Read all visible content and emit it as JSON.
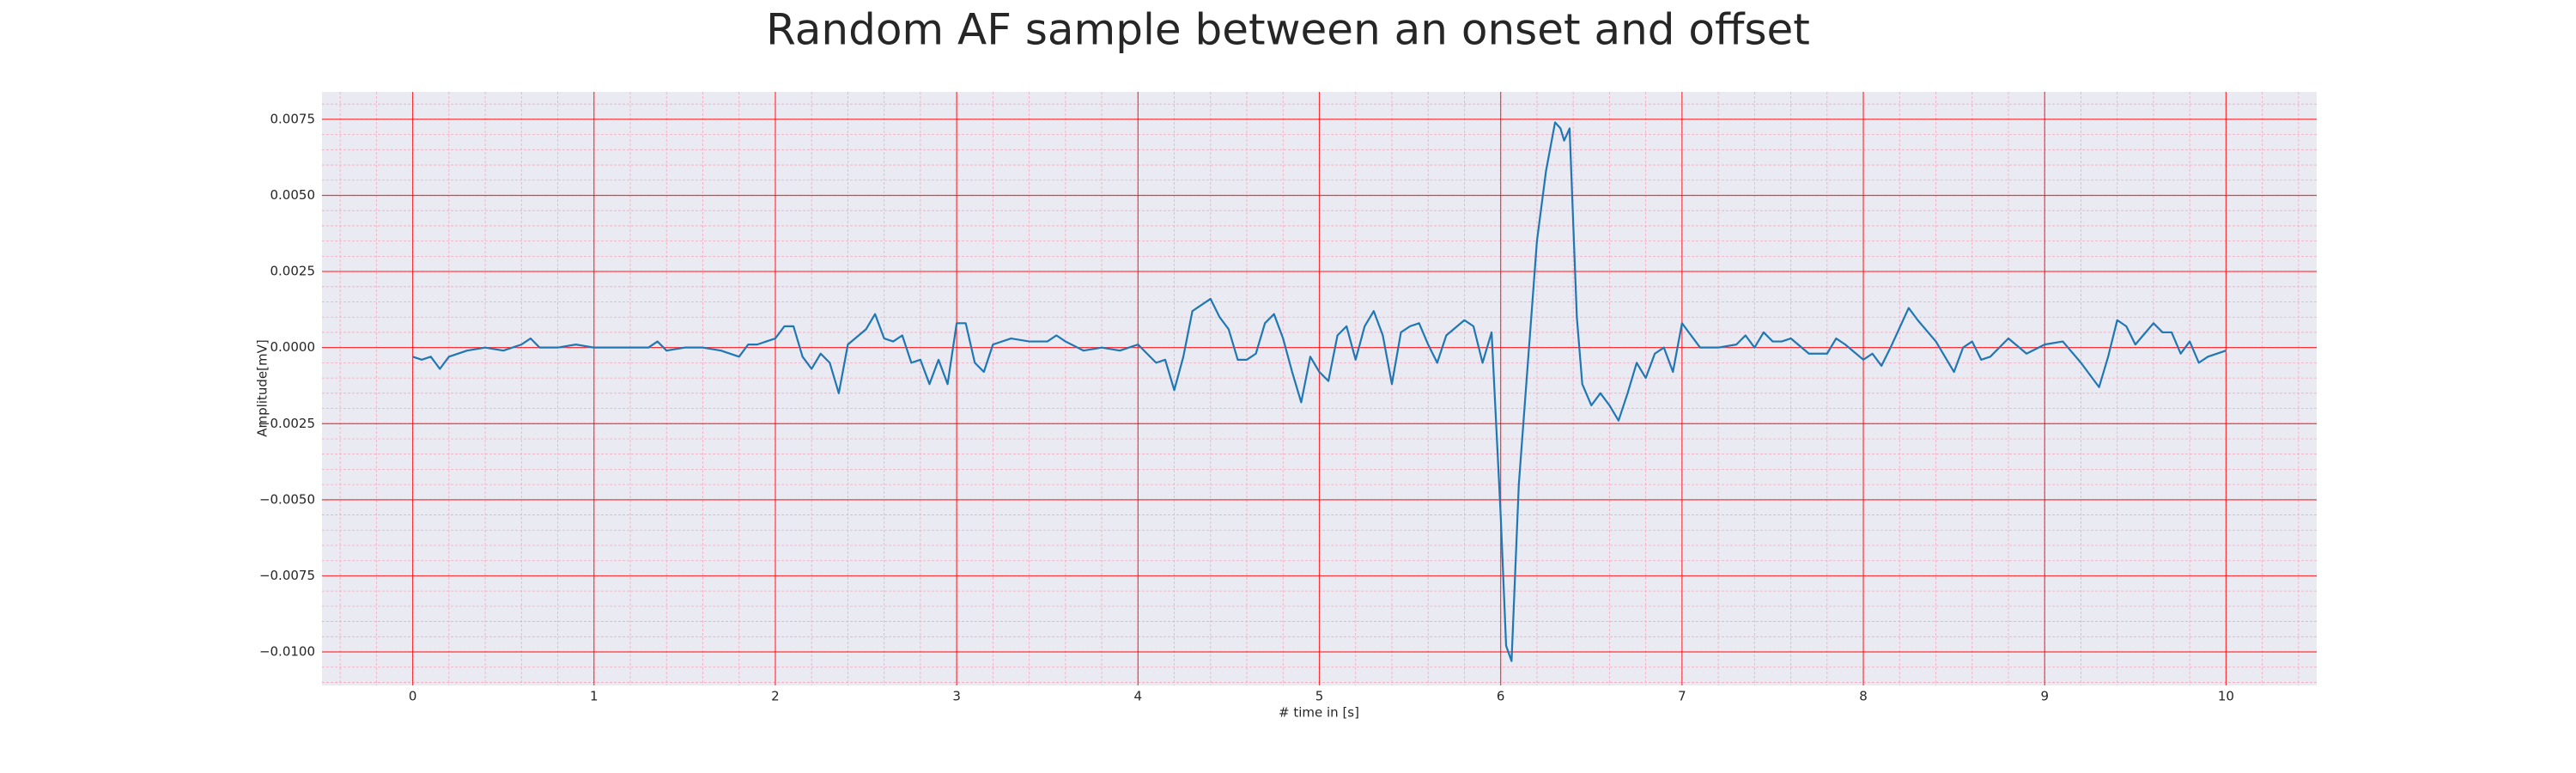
{
  "chart_data": {
    "type": "line",
    "title": "Random AF sample between an onset and offset",
    "x_label": "# time in [s]",
    "y_label": "Amplitude[mV]",
    "xlim": [
      -0.5,
      10.5
    ],
    "ylim": [
      -0.0111,
      0.0084
    ],
    "xticks": [
      0,
      1,
      2,
      3,
      4,
      5,
      6,
      7,
      8,
      9,
      10
    ],
    "yticks": [
      {
        "value": -0.01,
        "label": "−0.0100"
      },
      {
        "value": -0.0075,
        "label": "−0.0075"
      },
      {
        "value": -0.005,
        "label": "−0.0050"
      },
      {
        "value": -0.0025,
        "label": "−0.0025"
      },
      {
        "value": 0,
        "label": "0.0000"
      },
      {
        "value": 0.0025,
        "label": "0.0025"
      },
      {
        "value": 0.005,
        "label": "0.0050"
      },
      {
        "value": 0.0075,
        "label": "0.0075"
      }
    ],
    "grid": true,
    "minor_grid": true,
    "grid_color": "#ff0000",
    "minor_grid_color": "#f7a8c0",
    "background": "#eaeaf2",
    "x": [
      0,
      0.05,
      0.1,
      0.15,
      0.2,
      0.3,
      0.4,
      0.5,
      0.6,
      0.65,
      0.7,
      0.8,
      0.9,
      1.0,
      1.1,
      1.2,
      1.3,
      1.35,
      1.4,
      1.5,
      1.6,
      1.7,
      1.8,
      1.85,
      1.9,
      2.0,
      2.05,
      2.1,
      2.15,
      2.2,
      2.25,
      2.3,
      2.35,
      2.4,
      2.5,
      2.55,
      2.6,
      2.65,
      2.7,
      2.75,
      2.8,
      2.85,
      2.9,
      2.95,
      3.0,
      3.05,
      3.1,
      3.15,
      3.2,
      3.3,
      3.4,
      3.5,
      3.55,
      3.6,
      3.7,
      3.8,
      3.9,
      4.0,
      4.1,
      4.15,
      4.2,
      4.25,
      4.3,
      4.4,
      4.45,
      4.5,
      4.55,
      4.6,
      4.65,
      4.7,
      4.75,
      4.8,
      4.85,
      4.9,
      4.95,
      5.0,
      5.05,
      5.1,
      5.15,
      5.2,
      5.25,
      5.3,
      5.35,
      5.4,
      5.45,
      5.5,
      5.55,
      5.6,
      5.65,
      5.7,
      5.8,
      5.85,
      5.9,
      5.95,
      6.0,
      6.03,
      6.06,
      6.1,
      6.15,
      6.2,
      6.25,
      6.3,
      6.33,
      6.35,
      6.38,
      6.42,
      6.45,
      6.5,
      6.55,
      6.6,
      6.65,
      6.7,
      6.75,
      6.8,
      6.85,
      6.9,
      6.95,
      7.0,
      7.05,
      7.1,
      7.2,
      7.3,
      7.35,
      7.4,
      7.45,
      7.5,
      7.55,
      7.6,
      7.7,
      7.8,
      7.85,
      7.9,
      8.0,
      8.05,
      8.1,
      8.15,
      8.25,
      8.3,
      8.4,
      8.5,
      8.55,
      8.6,
      8.65,
      8.7,
      8.8,
      8.9,
      9.0,
      9.1,
      9.2,
      9.3,
      9.35,
      9.4,
      9.45,
      9.5,
      9.6,
      9.65,
      9.7,
      9.75,
      9.8,
      9.85,
      9.9,
      10.0
    ],
    "series": [
      {
        "color": "#1f77b4",
        "values": [
          -0.0003,
          -0.0004,
          -0.0003,
          -0.0007,
          -0.0003,
          -0.0001,
          0,
          -0.0001,
          0.0001,
          0.0003,
          0,
          0,
          0.0001,
          0,
          0,
          0,
          0,
          0.0002,
          -0.0001,
          0,
          0,
          -0.0001,
          -0.0003,
          0.0001,
          0.0001,
          0.0003,
          0.0007,
          0.0007,
          -0.0003,
          -0.0007,
          -0.0002,
          -0.0005,
          -0.0015,
          0.0001,
          0.0006,
          0.0011,
          0.0003,
          0.0002,
          0.0004,
          -0.0005,
          -0.0004,
          -0.0012,
          -0.0004,
          -0.0012,
          0.0008,
          0.0008,
          -0.0005,
          -0.0008,
          0.0001,
          0.0003,
          0.0002,
          0.0002,
          0.0004,
          0.0002,
          -0.0001,
          0,
          -0.0001,
          0.0001,
          -0.0005,
          -0.0004,
          -0.0014,
          -0.0003,
          0.0012,
          0.0016,
          0.001,
          0.0006,
          -0.0004,
          -0.0004,
          -0.0002,
          0.0008,
          0.0011,
          0.0003,
          -0.0008,
          -0.0018,
          -0.0003,
          -0.0008,
          -0.0011,
          0.0004,
          0.0007,
          -0.0004,
          0.0007,
          0.0012,
          0.0004,
          -0.0012,
          0.0005,
          0.0007,
          0.0008,
          0.0001,
          -0.0005,
          0.0004,
          0.0009,
          0.0007,
          -0.0005,
          0.0005,
          -0.0055,
          -0.0098,
          -0.0103,
          -0.0045,
          -0.0005,
          0.0035,
          0.0058,
          0.0074,
          0.0072,
          0.0068,
          0.0072,
          0.001,
          -0.0012,
          -0.0019,
          -0.0015,
          -0.0019,
          -0.0024,
          -0.0015,
          -0.0005,
          -0.001,
          -0.0002,
          0,
          -0.0008,
          0.0008,
          0.0004,
          0,
          0,
          0.0001,
          0.0004,
          0,
          0.0005,
          0.0002,
          0.0002,
          0.0003,
          -0.0002,
          -0.0002,
          0.0003,
          0.0001,
          -0.0004,
          -0.0002,
          -0.0006,
          0,
          0.0013,
          0.0009,
          0.0002,
          -0.0008,
          0,
          0.0002,
          -0.0004,
          -0.0003,
          0.0003,
          -0.0002,
          0.0001,
          0.0002,
          -0.0005,
          -0.0013,
          -0.0003,
          0.0009,
          0.0007,
          0.0001,
          0.0008,
          0.0005,
          0.0005,
          -0.0002,
          0.0002,
          -0.0005,
          -0.0003,
          -0.0001
        ]
      }
    ]
  }
}
